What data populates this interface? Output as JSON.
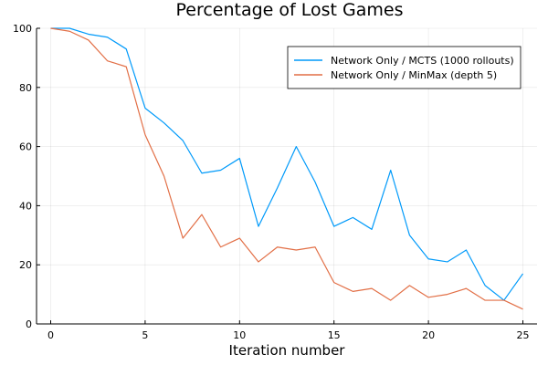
{
  "chart_data": {
    "type": "line",
    "title": "Percentage of Lost Games",
    "xlabel": "Iteration number",
    "ylabel": "",
    "xlim": [
      -0.75,
      25.75
    ],
    "ylim": [
      0,
      100
    ],
    "xticks": [
      0,
      5,
      10,
      15,
      20,
      25
    ],
    "yticks": [
      0,
      20,
      40,
      60,
      80,
      100
    ],
    "grid": true,
    "legend_position": "top-right",
    "x": [
      0,
      1,
      2,
      3,
      4,
      5,
      6,
      7,
      8,
      9,
      10,
      11,
      12,
      13,
      14,
      15,
      16,
      17,
      18,
      19,
      20,
      21,
      22,
      23,
      24,
      25
    ],
    "series": [
      {
        "name": "Network Only / MCTS (1000 rollouts)",
        "color": "#009AFA",
        "values": [
          100,
          100,
          98,
          97,
          93,
          73,
          68,
          62,
          51,
          52,
          56,
          33,
          46,
          60,
          48,
          33,
          36,
          32,
          52,
          30,
          22,
          21,
          25,
          13,
          8,
          17
        ]
      },
      {
        "name": "Network Only / MinMax (depth 5)",
        "color": "#E26F46",
        "values": [
          100,
          99,
          96,
          89,
          87,
          64,
          50,
          29,
          37,
          26,
          29,
          21,
          26,
          25,
          26,
          14,
          11,
          12,
          8,
          13,
          9,
          10,
          12,
          8,
          8,
          5
        ]
      }
    ]
  }
}
